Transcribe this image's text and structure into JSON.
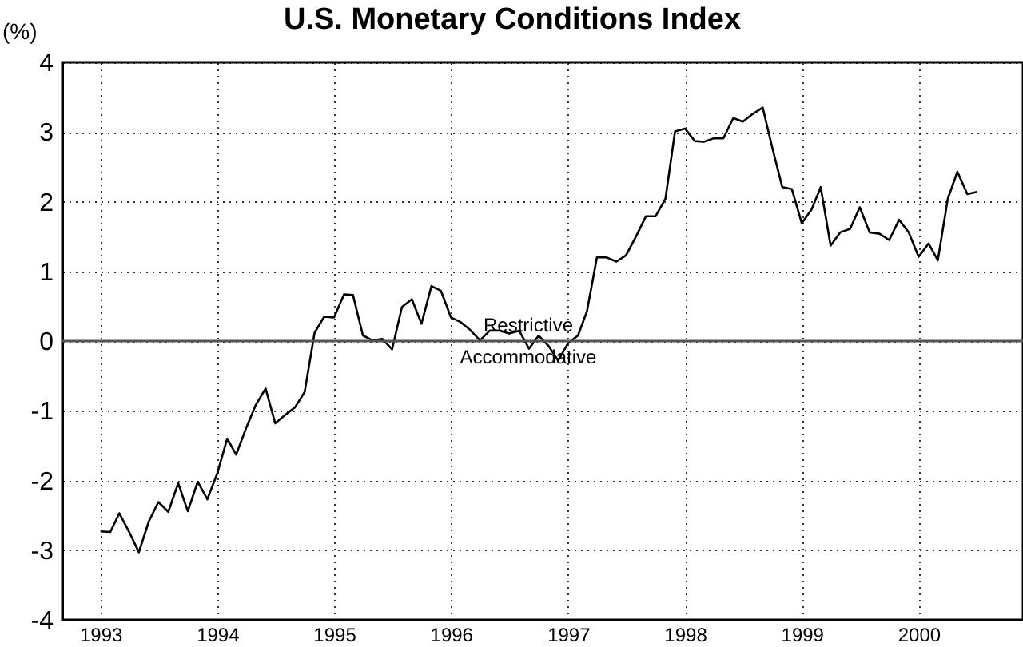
{
  "chart_data": {
    "type": "line",
    "title": "U.S. Monetary Conditions Index",
    "ylabel": "(%)",
    "x": [
      "1993-01",
      "1993-02",
      "1993-03",
      "1993-04",
      "1993-05",
      "1993-06",
      "1993-07",
      "1993-08",
      "1993-09",
      "1993-10",
      "1993-11",
      "1993-12",
      "1994-01",
      "1994-02",
      "1994-03",
      "1994-04",
      "1994-05",
      "1994-06",
      "1994-07",
      "1994-08",
      "1994-09",
      "1994-10",
      "1994-11",
      "1994-12",
      "1995-01",
      "1995-02",
      "1995-03",
      "1995-04",
      "1995-05",
      "1995-06",
      "1995-07",
      "1995-08",
      "1995-09",
      "1995-10",
      "1995-11",
      "1995-12",
      "1996-01",
      "1996-02",
      "1996-03",
      "1996-04",
      "1996-05",
      "1996-06",
      "1996-07",
      "1996-08",
      "1996-09",
      "1996-10",
      "1996-11",
      "1996-12",
      "1997-01",
      "1997-02",
      "1997-03",
      "1997-04",
      "1997-05",
      "1997-06",
      "1997-07",
      "1997-08",
      "1997-09",
      "1997-10",
      "1997-11",
      "1997-12",
      "1998-01",
      "1998-02",
      "1998-03",
      "1998-04",
      "1998-05",
      "1998-06",
      "1998-07",
      "1998-08",
      "1998-09",
      "1998-10",
      "1998-11",
      "1998-12",
      "1999-01",
      "1999-02",
      "1999-03",
      "1999-04",
      "1999-05",
      "1999-06",
      "1999-07",
      "1999-08",
      "1999-09",
      "1999-10",
      "1999-11",
      "1999-12",
      "2000-01",
      "2000-02",
      "2000-03",
      "2000-04",
      "2000-05",
      "2000-06",
      "2000-07"
    ],
    "series": [
      {
        "color": "#000000",
        "values": [
          -2.73,
          -2.74,
          -2.47,
          -2.74,
          -3.03,
          -2.59,
          -2.31,
          -2.45,
          -2.04,
          -2.44,
          -2.02,
          -2.27,
          -1.9,
          -1.4,
          -1.63,
          -1.25,
          -0.92,
          -0.68,
          -1.18,
          -1.06,
          -0.95,
          -0.73,
          0.12,
          0.35,
          0.34,
          0.67,
          0.66,
          0.08,
          0.01,
          0.03,
          -0.12,
          0.49,
          0.6,
          0.25,
          0.79,
          0.72,
          0.34,
          0.27,
          0.16,
          0.01,
          0.15,
          0.15,
          0.11,
          0.15,
          -0.11,
          0.08,
          -0.07,
          -0.28,
          -0.03,
          0.08,
          0.43,
          1.2,
          1.2,
          1.14,
          1.23,
          1.5,
          1.79,
          1.79,
          2.04,
          3.01,
          3.05,
          2.87,
          2.86,
          2.91,
          2.91,
          3.2,
          3.15,
          3.26,
          3.35,
          2.77,
          2.21,
          2.18,
          1.69,
          1.89,
          2.21,
          1.37,
          1.56,
          1.61,
          1.92,
          1.56,
          1.54,
          1.45,
          1.74,
          1.56,
          1.21,
          1.4,
          1.16,
          2.04,
          2.43,
          2.11,
          2.14
        ]
      }
    ],
    "xlim": [
      "1992-09-04",
      "2000-11-22"
    ],
    "xticks": [
      {
        "value": "1993",
        "label": "1993"
      },
      {
        "value": "1994",
        "label": "1994"
      },
      {
        "value": "1995",
        "label": "1995"
      },
      {
        "value": "1996",
        "label": "1996"
      },
      {
        "value": "1997",
        "label": "1997"
      },
      {
        "value": "1998",
        "label": "1998"
      },
      {
        "value": "1999",
        "label": "1999"
      },
      {
        "value": "2000",
        "label": "2000"
      }
    ],
    "ylim": [
      -4,
      4
    ],
    "yticks": [
      -4,
      -3,
      -2,
      -1,
      0,
      1,
      2,
      3,
      4
    ],
    "grid": true,
    "marker": "none",
    "line_style": "solid",
    "ref_lines": [
      {
        "axis": "y",
        "value": 0,
        "color": "#555555"
      }
    ],
    "annotations": [
      "Restrictive",
      "Accommodative"
    ]
  }
}
